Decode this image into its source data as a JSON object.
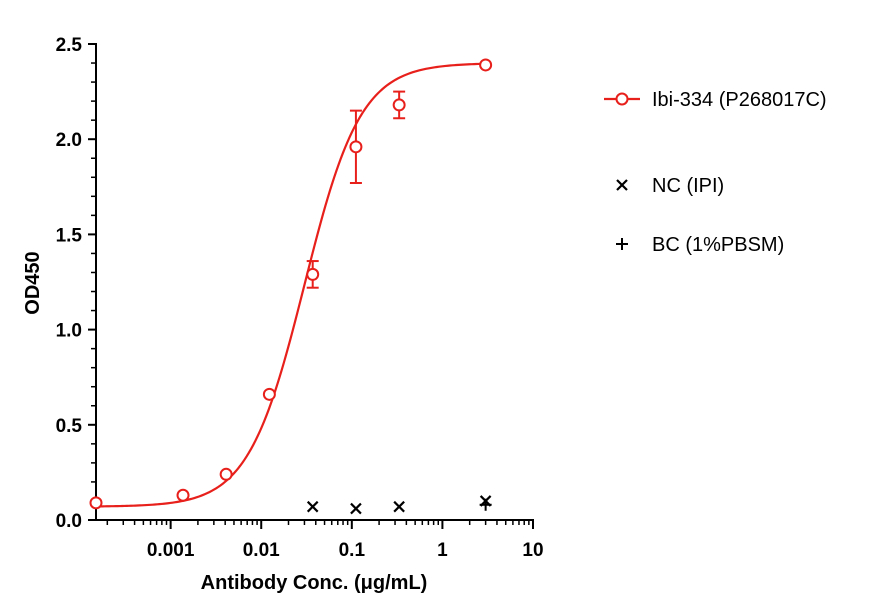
{
  "chart_data": {
    "type": "scatter",
    "title": "",
    "xlabel": "Antibody Conc. (μg/mL)",
    "ylabel": "OD450",
    "x_scale": "log",
    "xlim": [
      0.00015,
      10
    ],
    "ylim": [
      0,
      2.5
    ],
    "x_ticks": [
      {
        "value": 0.001,
        "label": "0.001"
      },
      {
        "value": 0.01,
        "label": "0.01"
      },
      {
        "value": 0.1,
        "label": "0.1"
      },
      {
        "value": 1,
        "label": "1"
      },
      {
        "value": 10,
        "label": "10"
      }
    ],
    "y_ticks": [
      {
        "value": 0,
        "label": "0.0"
      },
      {
        "value": 0.5,
        "label": "0.5"
      },
      {
        "value": 1,
        "label": "1.0"
      },
      {
        "value": 1.5,
        "label": "1.5"
      },
      {
        "value": 2,
        "label": "2.0"
      },
      {
        "value": 2.5,
        "label": "2.5"
      }
    ],
    "grid": false,
    "legend_position": "right",
    "series": [
      {
        "name": "Ibi-334 (P268017C)",
        "color": "#e8201c",
        "marker": "open-circle",
        "fit_curve": {
          "bottom": 0.07,
          "top": 2.4,
          "ec50": 0.03,
          "hill": 1.4
        },
        "points": [
          {
            "x": 0.00015,
            "y": 0.09,
            "err": 0
          },
          {
            "x": 0.00137,
            "y": 0.13,
            "err": 0
          },
          {
            "x": 0.0041,
            "y": 0.24,
            "err": 0
          },
          {
            "x": 0.0123,
            "y": 0.66,
            "err": 0
          },
          {
            "x": 0.037,
            "y": 1.29,
            "err": 0.07
          },
          {
            "x": 0.111,
            "y": 1.96,
            "err": 0.19
          },
          {
            "x": 0.333,
            "y": 2.18,
            "err": 0.07
          },
          {
            "x": 3,
            "y": 2.39,
            "err": 0
          }
        ]
      },
      {
        "name": "NC (IPI)",
        "color": "#000000",
        "marker": "x",
        "points": [
          {
            "x": 0.037,
            "y": 0.07
          },
          {
            "x": 0.111,
            "y": 0.06
          },
          {
            "x": 0.333,
            "y": 0.07
          },
          {
            "x": 3,
            "y": 0.1
          }
        ]
      },
      {
        "name": "BC (1%PBSM)",
        "color": "#000000",
        "marker": "plus",
        "points": [
          {
            "x": 3,
            "y": 0.08
          }
        ]
      }
    ]
  }
}
